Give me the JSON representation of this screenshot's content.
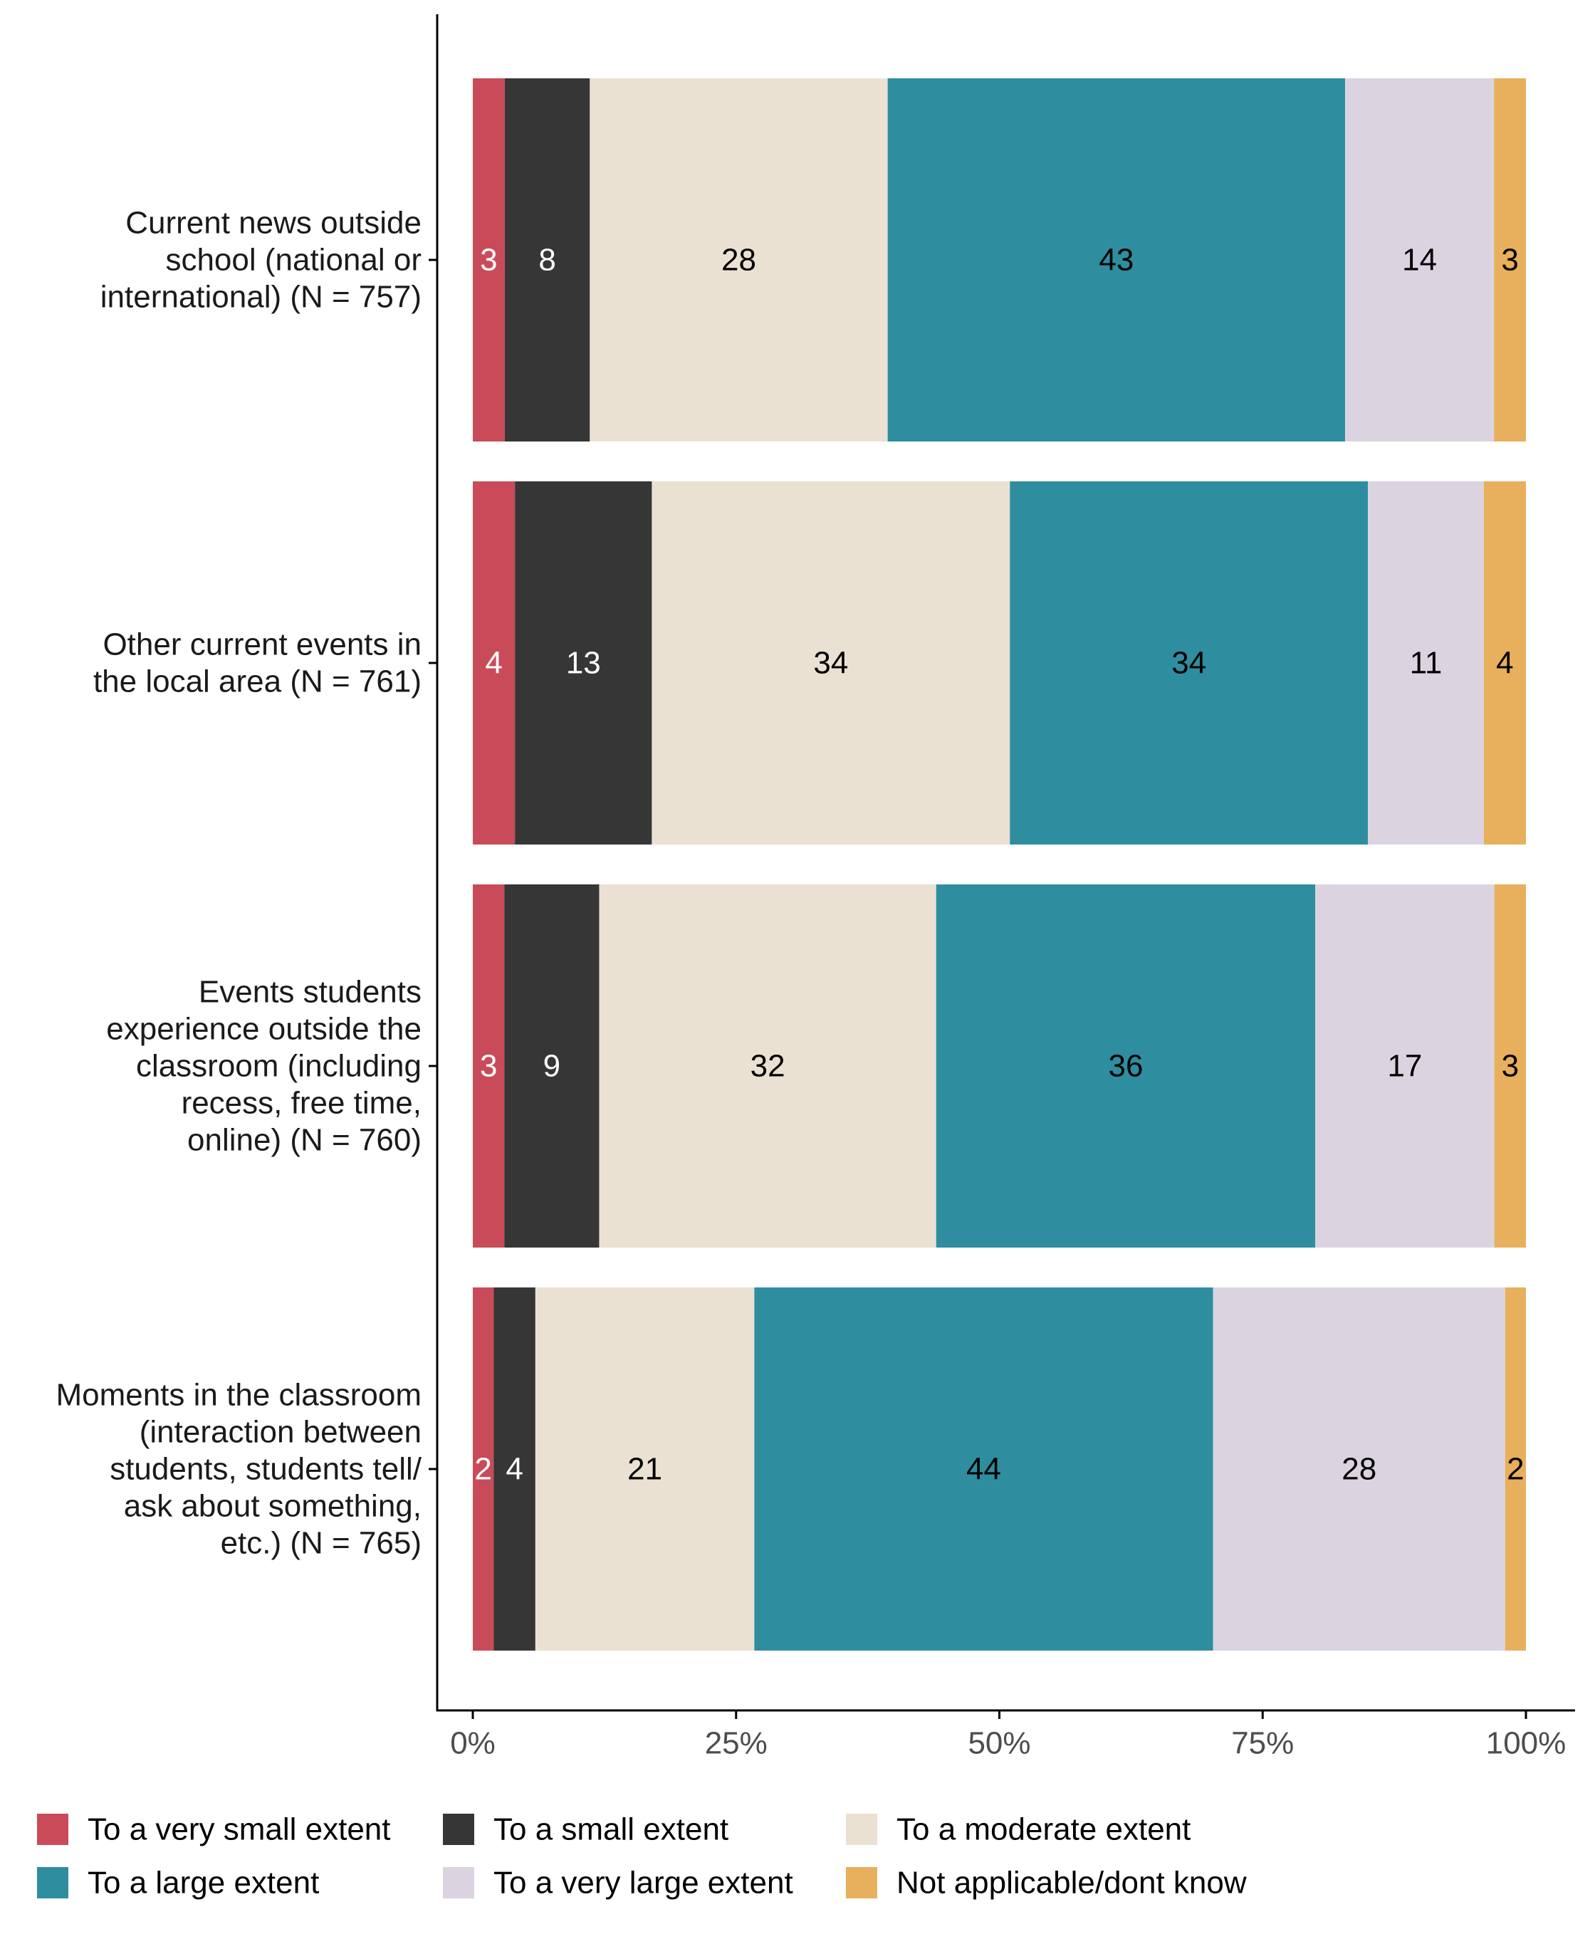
{
  "chart_data": {
    "type": "bar",
    "orientation": "horizontal",
    "stacked": true,
    "percent_stacked": true,
    "title": "",
    "xlabel": "",
    "ylabel": "",
    "xlim": [
      0,
      100
    ],
    "grid": false,
    "legend_position": "bottom",
    "x_ticks": [
      "0%",
      "25%",
      "50%",
      "75%",
      "100%"
    ],
    "categories": [
      [
        "Current news outside",
        "school (national or",
        "international) (N = 757)"
      ],
      [
        "Other current events in",
        "the local area (N = 761)"
      ],
      [
        "Events students",
        "experience outside the",
        "classroom (including",
        "recess, free time,",
        "online) (N = 760)"
      ],
      [
        "Moments in the classroom",
        "(interaction between",
        "students, students tell/",
        "ask about something,",
        "etc.) (N = 765)"
      ]
    ],
    "series": [
      {
        "name": "To a very small extent",
        "color": "#C94B5A",
        "label_color": "#FFFFFF",
        "values": [
          3,
          4,
          3,
          2
        ]
      },
      {
        "name": "To a small extent",
        "color": "#363636",
        "label_color": "#FFFFFF",
        "values": [
          8,
          13,
          9,
          4
        ]
      },
      {
        "name": "To a moderate extent",
        "color": "#EBE1D3",
        "label_color": "#000000",
        "values": [
          28,
          34,
          32,
          21
        ]
      },
      {
        "name": "To a large extent",
        "color": "#2E8E9F",
        "label_color": "#000000",
        "values": [
          43,
          34,
          36,
          44
        ]
      },
      {
        "name": "To a very large extent",
        "color": "#DBD4E0",
        "label_color": "#000000",
        "values": [
          14,
          11,
          17,
          28
        ]
      },
      {
        "name": "Not applicable/dont know",
        "color": "#E8AF5C",
        "label_color": "#000000",
        "values": [
          3,
          4,
          3,
          2
        ]
      }
    ],
    "data_labels": [
      [
        "3",
        "8",
        "28",
        "43",
        "14",
        "3"
      ],
      [
        "4",
        "13",
        "34",
        "34",
        "11",
        "4"
      ],
      [
        "3",
        "9",
        "32",
        "36",
        "17",
        "3"
      ],
      [
        "2",
        "4",
        "21",
        "44",
        "28",
        "2"
      ]
    ]
  }
}
